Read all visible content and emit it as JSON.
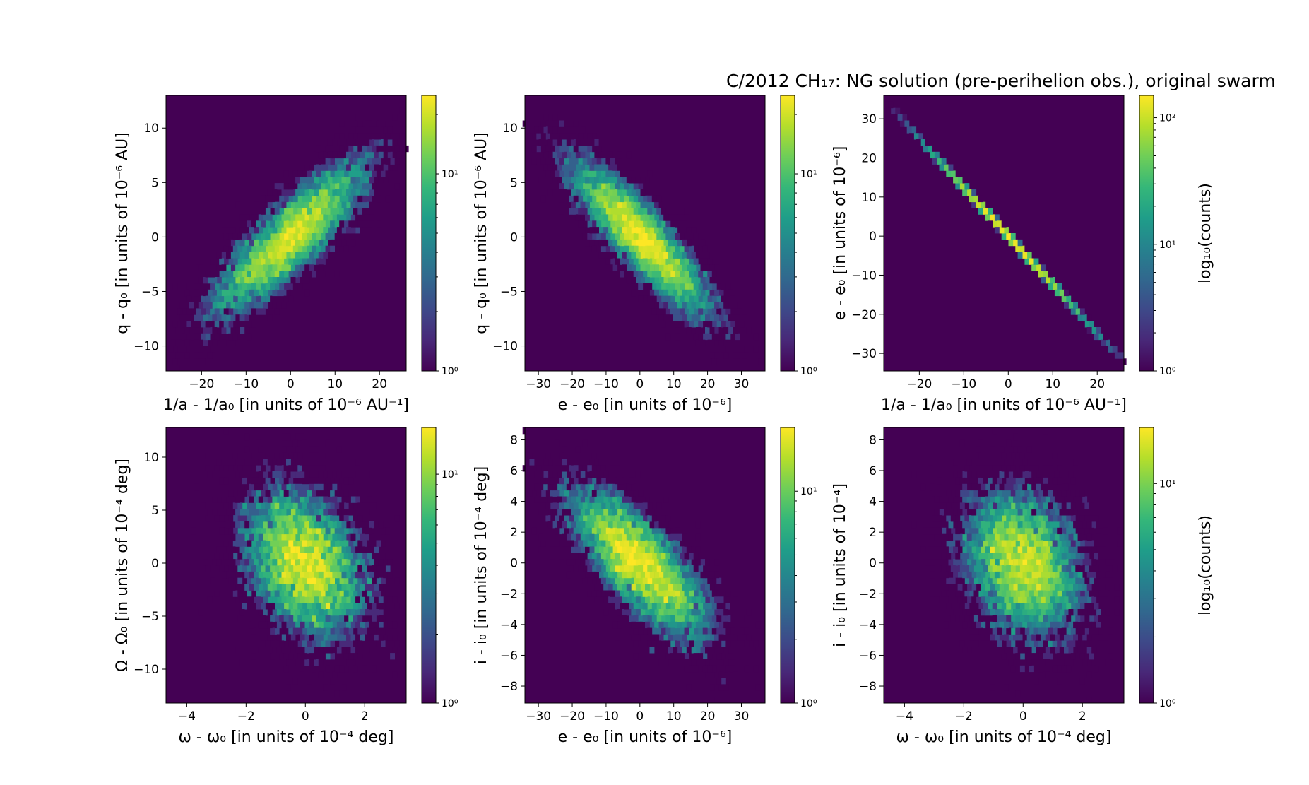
{
  "figure_title": "C/2012 CH₁₇: NG solution (pre-perihelion obs.), original swarm",
  "colormap": [
    "#440154",
    "#482878",
    "#3e4989",
    "#31688e",
    "#26828e",
    "#1f9e89",
    "#35b779",
    "#6ece58",
    "#b5de2b",
    "#fde725"
  ],
  "chart_data": [
    {
      "type": "heatmap",
      "id": "p1",
      "xlabel": "1/a - 1/a₀ [in units of 10⁻⁶ AU⁻¹]",
      "ylabel": "q - q₀ [in units of 10⁻⁶ AU]",
      "xlim": [
        -28,
        26
      ],
      "ylim": [
        -12.3,
        13.0
      ],
      "xticks": [
        -20,
        -10,
        0,
        10,
        20
      ],
      "yticks": [
        -10,
        -5,
        0,
        5,
        10
      ],
      "xticklabels": [
        "−20",
        "−10",
        "0",
        "10",
        "20"
      ],
      "yticklabels": [
        "−10",
        "−5",
        "0",
        "5",
        "10"
      ],
      "density": {
        "shape": "correlated",
        "cx": 0,
        "cy": 0,
        "sx": 8.8,
        "sy": 3.6,
        "rho": 0.85,
        "n": 8000,
        "seed": 11
      },
      "colorbar": {
        "scale": "log",
        "min": 1,
        "max": 25,
        "ticks": [
          1,
          10
        ],
        "ticklabels": [
          "10⁰",
          "10¹"
        ],
        "label": ""
      }
    },
    {
      "type": "heatmap",
      "id": "p2",
      "xlabel": "e - e₀ [in units of 10⁻⁶]",
      "ylabel": "q - q₀ [in units of 10⁻⁶ AU]",
      "xlim": [
        -34,
        37
      ],
      "ylim": [
        -12.3,
        13.0
      ],
      "xticks": [
        -30,
        -20,
        -10,
        0,
        10,
        20,
        30
      ],
      "yticks": [
        -10,
        -5,
        0,
        5,
        10
      ],
      "xticklabels": [
        "−30",
        "−20",
        "−10",
        "0",
        "10",
        "20",
        "30"
      ],
      "yticklabels": [
        "−10",
        "−5",
        "0",
        "5",
        "10"
      ],
      "density": {
        "shape": "correlated",
        "cx": 0,
        "cy": 0,
        "sx": 10.5,
        "sy": 3.6,
        "rho": -0.87,
        "n": 8000,
        "seed": 23
      },
      "colorbar": {
        "scale": "log",
        "min": 1,
        "max": 25,
        "ticks": [
          1,
          10
        ],
        "ticklabels": [
          "10⁰",
          "10¹"
        ],
        "label": ""
      }
    },
    {
      "type": "heatmap",
      "id": "p3",
      "xlabel": "1/a - 1/a₀ [in units of 10⁻⁶ AU⁻¹]",
      "ylabel": "e - e₀ [in units of 10⁻⁶]",
      "xlim": [
        -28,
        26
      ],
      "ylim": [
        -34.5,
        36
      ],
      "xticks": [
        -20,
        -10,
        0,
        10,
        20
      ],
      "yticks": [
        -30,
        -20,
        -10,
        0,
        10,
        20,
        30
      ],
      "xticklabels": [
        "−20",
        "−10",
        "0",
        "10",
        "20"
      ],
      "yticklabels": [
        "−30",
        "−20",
        "−10",
        "0",
        "10",
        "20",
        "30"
      ],
      "density": {
        "shape": "line",
        "slope": -1.24,
        "x0": -24.5,
        "x1": 24.5,
        "sx": 8.8,
        "n": 8000,
        "seed": 37
      },
      "colorbar": {
        "scale": "log",
        "min": 1,
        "max": 150,
        "ticks": [
          1,
          10,
          100
        ],
        "ticklabels": [
          "10⁰",
          "10¹",
          "10²"
        ],
        "label": "log₁₀(counts)"
      }
    },
    {
      "type": "heatmap",
      "id": "p4",
      "xlabel": "ω - ω₀ [in units of 10⁻⁴ deg]",
      "ylabel": "Ω - Ω₀ [in units of 10⁻⁴ deg]",
      "xlim": [
        -4.7,
        3.4
      ],
      "ylim": [
        -13.2,
        12.8
      ],
      "xticks": [
        -4,
        -2,
        0,
        2
      ],
      "yticks": [
        -10,
        -5,
        0,
        5,
        10
      ],
      "xticklabels": [
        "−4",
        "−2",
        "0",
        "2"
      ],
      "yticklabels": [
        "−10",
        "−5",
        "0",
        "5",
        "10"
      ],
      "density": {
        "shape": "correlated",
        "cx": 0,
        "cy": 0,
        "sx": 1.05,
        "sy": 3.7,
        "rho": -0.3,
        "n": 8000,
        "seed": 41
      },
      "colorbar": {
        "scale": "log",
        "min": 1,
        "max": 16,
        "ticks": [
          1,
          10
        ],
        "ticklabels": [
          "10⁰",
          "10¹"
        ],
        "label": ""
      }
    },
    {
      "type": "heatmap",
      "id": "p5",
      "xlabel": "e - e₀ [in units of 10⁻⁶]",
      "ylabel": "i - i₀ [in units of 10⁻⁴ deg]",
      "xlim": [
        -34,
        37
      ],
      "ylim": [
        -9.1,
        8.8
      ],
      "xticks": [
        -30,
        -20,
        -10,
        0,
        10,
        20,
        30
      ],
      "yticks": [
        -8,
        -6,
        -4,
        -2,
        0,
        2,
        4,
        6,
        8
      ],
      "xticklabels": [
        "−30",
        "−20",
        "−10",
        "0",
        "10",
        "20",
        "30"
      ],
      "yticklabels": [
        "−8",
        "−6",
        "−4",
        "−2",
        "0",
        "2",
        "4",
        "6",
        "8"
      ],
      "density": {
        "shape": "correlated",
        "cx": 0,
        "cy": 0,
        "sx": 10.5,
        "sy": 2.5,
        "rho": -0.75,
        "n": 8000,
        "seed": 53
      },
      "colorbar": {
        "scale": "log",
        "min": 1,
        "max": 20,
        "ticks": [
          1,
          10
        ],
        "ticklabels": [
          "10⁰",
          "10¹"
        ],
        "label": ""
      }
    },
    {
      "type": "heatmap",
      "id": "p6",
      "xlabel": "ω - ω₀ [in units of 10⁻⁴ deg]",
      "ylabel": "i - i₀ [in units of 10⁻⁴]",
      "xlim": [
        -4.7,
        3.4
      ],
      "ylim": [
        -9.1,
        8.8
      ],
      "xticks": [
        -4,
        -2,
        0,
        2
      ],
      "yticks": [
        -8,
        -6,
        -4,
        -2,
        0,
        2,
        4,
        6,
        8
      ],
      "xticklabels": [
        "−4",
        "−2",
        "0",
        "2"
      ],
      "yticklabels": [
        "−8",
        "−6",
        "−4",
        "−2",
        "0",
        "2",
        "4",
        "6",
        "8"
      ],
      "density": {
        "shape": "correlated",
        "cx": 0,
        "cy": 0,
        "sx": 1.05,
        "sy": 2.5,
        "rho": -0.25,
        "n": 8000,
        "seed": 67
      },
      "colorbar": {
        "scale": "log",
        "min": 1,
        "max": 18,
        "ticks": [
          1,
          10
        ],
        "ticklabels": [
          "10⁰",
          "10¹"
        ],
        "label": "log₁₀(counts)"
      }
    }
  ]
}
